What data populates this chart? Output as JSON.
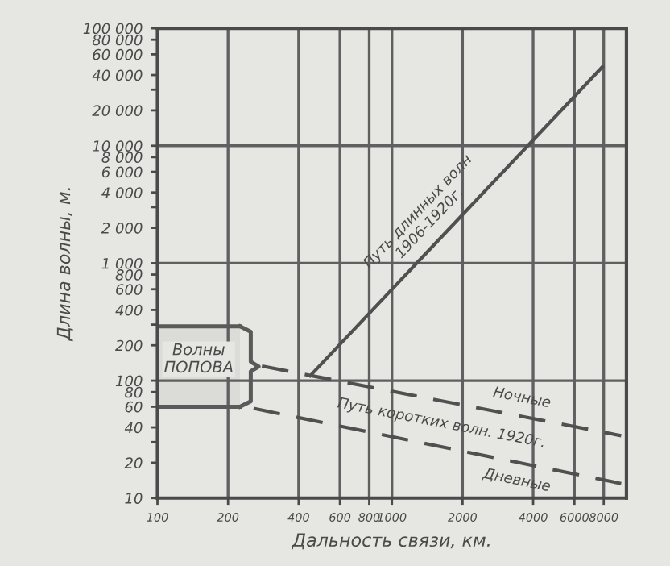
{
  "chart_data": {
    "type": "line",
    "xlabel": "Дальность связи, км.",
    "ylabel": "Длина волны, м.",
    "log": "xy",
    "xlim": [
      100,
      10000
    ],
    "ylim": [
      10,
      100000
    ],
    "xticks": [
      100,
      200,
      400,
      600,
      800,
      1000,
      2000,
      4000,
      6000,
      8000
    ],
    "yticks": [
      {
        "value": 10,
        "label": "10"
      },
      {
        "value": 20,
        "label": "20"
      },
      {
        "value": 30,
        "label": null
      },
      {
        "value": 40,
        "label": "40"
      },
      {
        "value": 60,
        "label": "60"
      },
      {
        "value": 80,
        "label": "80"
      },
      {
        "value": 100,
        "label": "100"
      },
      {
        "value": 200,
        "label": "200"
      },
      {
        "value": 300,
        "label": null
      },
      {
        "value": 400,
        "label": "400"
      },
      {
        "value": 600,
        "label": "600"
      },
      {
        "value": 800,
        "label": "800"
      },
      {
        "value": 1000,
        "label": "1 000"
      },
      {
        "value": 2000,
        "label": "2 000"
      },
      {
        "value": 3000,
        "label": null
      },
      {
        "value": 4000,
        "label": "4 000"
      },
      {
        "value": 6000,
        "label": "6 000"
      },
      {
        "value": 8000,
        "label": "8 000"
      },
      {
        "value": 10000,
        "label": "10 000"
      },
      {
        "value": 20000,
        "label": "20 000"
      },
      {
        "value": 30000,
        "label": null
      },
      {
        "value": 40000,
        "label": "40 000"
      },
      {
        "value": 60000,
        "label": "60 000"
      },
      {
        "value": 80000,
        "label": "80 000"
      },
      {
        "value": 100000,
        "label": "100 000"
      }
    ],
    "grid": "x",
    "ref_lines": [
      {
        "axis": "y",
        "value": 100,
        "color": "#606060"
      },
      {
        "axis": "y",
        "value": 1000,
        "color": "#606060"
      },
      {
        "axis": "y",
        "value": 10000,
        "color": "#606060"
      }
    ],
    "bands": [
      {
        "axis": "y",
        "from": 60,
        "to": 290,
        "label": "Волны\nПОПОВА",
        "color": "#5a5a5a"
      }
    ],
    "series": [
      {
        "name": "Путь длинных волн\n1906-1920г.",
        "color": "#505050",
        "line_style": "solid",
        "x": [
          448,
          7890
        ],
        "values": [
          110,
          46900
        ]
      },
      {
        "name": "Ночные",
        "color": "#505050",
        "line_style": "dashed",
        "x": [
          279,
          9500
        ],
        "values": [
          133,
          34
        ]
      },
      {
        "name": "Дневные",
        "color": "#505050",
        "line_style": "dashed",
        "x": [
          257,
          9500
        ],
        "values": [
          58,
          13.3
        ]
      }
    ],
    "annotations": [
      "Путь коротких волн. 1920г."
    ]
  }
}
